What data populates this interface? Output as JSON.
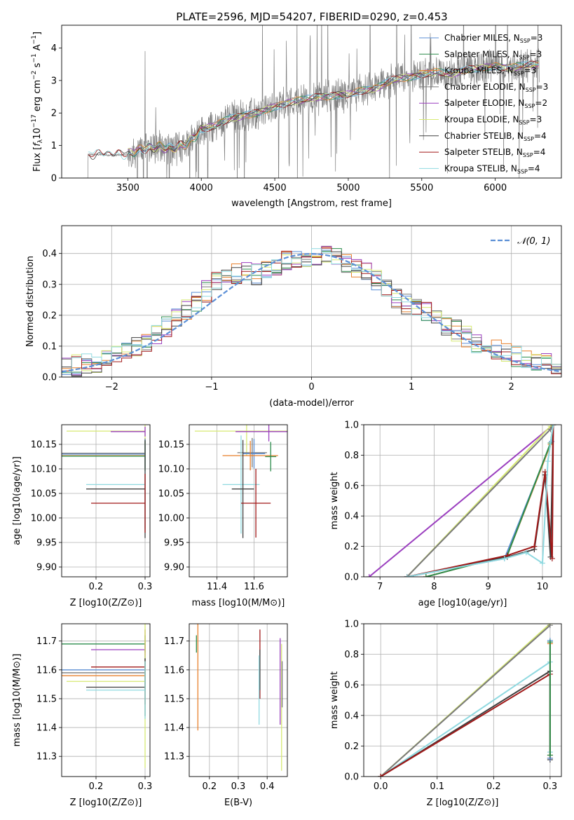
{
  "figure_title": "PLATE=2596, MJD=54207, FIBERID=0290, z=0.453",
  "palette": {
    "Chabrier MILES": "#5b8fd6",
    "Salpeter MILES": "#2c8c4c",
    "Kroupa MILES": "#e8802d",
    "Chabrier ELODIE": "#7a7a7a",
    "Salpeter ELODIE": "#9b3fbf",
    "Kroupa ELODIE": "#d7ea73",
    "Chabrier STELIB": "#404040",
    "Salpeter STELIB": "#a01818",
    "Kroupa STELIB": "#8fd9e0",
    "data": "#808080",
    "normal": "#5b8fd6"
  },
  "chart_data": [
    {
      "type": "line",
      "id": "spectrum",
      "xlabel": "wavelength [Angstrom, rest frame]",
      "ylabel": "Flux [f_λ 10^-17 erg cm^-2 s^-1 A^-1]",
      "xlim": [
        3050,
        6450
      ],
      "ylim": [
        0,
        4.7
      ],
      "xticks": [
        3500,
        4000,
        4500,
        5000,
        5500,
        6000
      ],
      "yticks": [
        0,
        1,
        2,
        3,
        4
      ],
      "legend_position": "upper right",
      "legend": [
        {
          "label": "Chabrier MILES, N",
          "sub": "SSP",
          "suffix": "=3"
        },
        {
          "label": "Salpeter MILES, N",
          "sub": "SSP",
          "suffix": "=3"
        },
        {
          "label": "Kroupa MILES, N",
          "sub": "SSP",
          "suffix": "=3"
        },
        {
          "label": "Chabrier ELODIE, N",
          "sub": "SSP",
          "suffix": "=3"
        },
        {
          "label": "Salpeter ELODIE, N",
          "sub": "SSP",
          "suffix": "=2"
        },
        {
          "label": "Kroupa ELODIE, N",
          "sub": "SSP",
          "suffix": "=3"
        },
        {
          "label": "Chabrier STELIB, N",
          "sub": "SSP",
          "suffix": "=4"
        },
        {
          "label": "Salpeter STELIB, N",
          "sub": "SSP",
          "suffix": "=4"
        },
        {
          "label": "Kroupa STELIB, N",
          "sub": "SSP",
          "suffix": "=4"
        }
      ],
      "model_envelope": {
        "x": [
          3200,
          3230,
          3300,
          3400,
          3500,
          3600,
          3700,
          3800,
          3900,
          4000,
          4100,
          4200,
          4300,
          4400,
          4500,
          4600,
          4700,
          4800,
          4900,
          5000,
          5100,
          5200,
          5300,
          5400,
          5500,
          5600,
          5700,
          5800,
          5900,
          6000,
          6100,
          6200,
          6300
        ],
        "y": [
          0.0,
          0.72,
          0.72,
          0.7,
          0.72,
          0.9,
          0.98,
          0.88,
          1.05,
          1.5,
          1.6,
          1.85,
          1.95,
          2.0,
          2.2,
          2.35,
          2.4,
          2.5,
          2.55,
          2.55,
          2.7,
          2.8,
          3.0,
          3.1,
          3.2,
          3.25,
          3.2,
          3.35,
          3.35,
          3.45,
          3.4,
          3.45,
          3.5
        ]
      }
    },
    {
      "type": "line",
      "id": "residuals",
      "xlabel": "(data-model)/error",
      "ylabel": "Normed distribution",
      "xlim": [
        -2.5,
        2.5
      ],
      "ylim": [
        0,
        0.49
      ],
      "xticks": [
        -2,
        -1,
        0,
        1,
        2
      ],
      "yticks": [
        0.0,
        0.1,
        0.2,
        0.3,
        0.4
      ],
      "grid": true,
      "legend": [
        "𝒩(0, 1)"
      ],
      "legend_position": "upper right",
      "normal_curve": {
        "mean": 0,
        "sigma": 1
      },
      "histogram_envelope": {
        "bins_x": [
          -2.5,
          -2.3,
          -2.1,
          -1.9,
          -1.7,
          -1.5,
          -1.3,
          -1.1,
          -0.9,
          -0.7,
          -0.5,
          -0.3,
          -0.1,
          0.1,
          0.3,
          0.5,
          0.7,
          0.9,
          1.1,
          1.3,
          1.5,
          1.7,
          1.9,
          2.1,
          2.3,
          2.5
        ],
        "y": [
          0.03,
          0.04,
          0.05,
          0.08,
          0.1,
          0.15,
          0.2,
          0.26,
          0.33,
          0.34,
          0.33,
          0.37,
          0.39,
          0.4,
          0.38,
          0.35,
          0.3,
          0.24,
          0.22,
          0.18,
          0.14,
          0.1,
          0.08,
          0.06,
          0.05,
          0.04
        ]
      }
    },
    {
      "type": "scatter",
      "id": "age_vs_Z",
      "xlabel": "Z [log10(Z/Z⊙)]",
      "ylabel": "age [log10(age/yr)]",
      "xlim": [
        0.13,
        0.31
      ],
      "ylim": [
        9.88,
        10.19
      ],
      "xticks": [
        0.2,
        0.3
      ],
      "yticks": [
        9.9,
        9.95,
        10.0,
        10.05,
        10.1,
        10.15
      ],
      "grid": true,
      "points": [
        {
          "model": "Kroupa ELODIE",
          "x": 0.3,
          "y": 10.177,
          "xerr_low": 0.16,
          "yerr": 0.04
        },
        {
          "model": "Salpeter ELODIE",
          "x": 0.3,
          "y": 10.176,
          "xerr_low": 0.07,
          "yerr": 0.01
        },
        {
          "model": "Chabrier ELODIE",
          "x": 0.3,
          "y": 10.132,
          "xerr_low": 0.17,
          "yerr": 0.03
        },
        {
          "model": "Chabrier MILES",
          "x": 0.3,
          "y": 10.13,
          "xerr_low": 0.17,
          "yerr": 0.03
        },
        {
          "model": "Kroupa MILES",
          "x": 0.3,
          "y": 10.127,
          "xerr_low": 0.17,
          "yerr": 0.03
        },
        {
          "model": "Salpeter MILES",
          "x": 0.3,
          "y": 10.126,
          "xerr_low": 0.17,
          "yerr": 0.03
        },
        {
          "model": "Kroupa STELIB",
          "x": 0.3,
          "y": 10.068,
          "xerr_low": 0.12,
          "yerr": 0.09
        },
        {
          "model": "Chabrier STELIB",
          "x": 0.3,
          "y": 10.059,
          "xerr_low": 0.12,
          "yerr": 0.1
        },
        {
          "model": "Salpeter STELIB",
          "x": 0.3,
          "y": 10.03,
          "xerr_low": 0.11,
          "yerr": 0.06
        }
      ]
    },
    {
      "type": "scatter",
      "id": "age_vs_mass",
      "xlabel": "mass [log10(M/M⊙)]",
      "ylabel": "",
      "xlim": [
        11.25,
        11.78
      ],
      "ylim": [
        9.88,
        10.19
      ],
      "xticks": [
        11.4,
        11.6
      ],
      "yticks": [
        9.9,
        9.95,
        10.0,
        10.05,
        10.1,
        10.15
      ],
      "grid": true,
      "points": [
        {
          "model": "Kroupa ELODIE",
          "x": 11.56,
          "y": 10.177,
          "xerr": 0.28,
          "yerr": 0.05
        },
        {
          "model": "Salpeter ELODIE",
          "x": 11.68,
          "y": 10.176,
          "xerr": 0.18,
          "yerr": 0.02
        },
        {
          "model": "Chabrier ELODIE",
          "x": 11.59,
          "y": 10.133,
          "xerr": 0.08,
          "yerr": 0.03
        },
        {
          "model": "Chabrier MILES",
          "x": 11.6,
          "y": 10.131,
          "xerr": 0.06,
          "yerr": 0.03
        },
        {
          "model": "Kroupa MILES",
          "x": 11.58,
          "y": 10.127,
          "xerr": 0.15,
          "yerr": 0.03
        },
        {
          "model": "Salpeter MILES",
          "x": 11.69,
          "y": 10.125,
          "xerr": 0.03,
          "yerr": 0.03
        },
        {
          "model": "Kroupa STELIB",
          "x": 11.53,
          "y": 10.068,
          "xerr": 0.1,
          "yerr": 0.1
        },
        {
          "model": "Chabrier STELIB",
          "x": 11.54,
          "y": 10.059,
          "xerr": 0.06,
          "yerr": 0.1
        },
        {
          "model": "Salpeter STELIB",
          "x": 11.61,
          "y": 10.03,
          "xerr": 0.08,
          "yerr": 0.07
        }
      ]
    },
    {
      "type": "line",
      "id": "massweight_vs_age",
      "xlabel": "age [log10(age/yr)]",
      "ylabel": "mass weight",
      "xlim": [
        6.7,
        10.35
      ],
      "ylim": [
        0,
        1.0
      ],
      "xticks": [
        7,
        8,
        9,
        10
      ],
      "yticks": [
        0.0,
        0.2,
        0.4,
        0.6,
        0.8,
        1.0
      ],
      "grid": true,
      "series": [
        {
          "model": "Salpeter ELODIE",
          "x": [
            6.8,
            10.2
          ],
          "y": [
            0.0,
            1.0
          ]
        },
        {
          "model": "Kroupa ELODIE",
          "x": [
            7.5,
            10.15,
            10.2
          ],
          "y": [
            0.0,
            0.99,
            1.0
          ]
        },
        {
          "model": "Chabrier ELODIE",
          "x": [
            7.5,
            10.15,
            10.2
          ],
          "y": [
            0.0,
            0.97,
            1.0
          ]
        },
        {
          "model": "Chabrier MILES",
          "x": [
            7.5,
            9.3,
            10.17,
            10.2
          ],
          "y": [
            0.0,
            0.12,
            0.89,
            1.0
          ]
        },
        {
          "model": "Kroupa MILES",
          "x": [
            7.85,
            9.35,
            10.15,
            10.2
          ],
          "y": [
            0.0,
            0.14,
            0.87,
            1.0
          ]
        },
        {
          "model": "Salpeter MILES",
          "x": [
            7.85,
            9.35,
            10.15,
            10.2
          ],
          "y": [
            0.0,
            0.14,
            0.88,
            1.0
          ]
        },
        {
          "model": "Chabrier STELIB",
          "x": [
            7.5,
            9.35,
            9.85,
            10.05,
            10.15,
            10.2
          ],
          "y": [
            0.0,
            0.13,
            0.18,
            0.67,
            0.13,
            1.0
          ]
        },
        {
          "model": "Salpeter STELIB",
          "x": [
            7.5,
            9.35,
            9.85,
            10.05,
            10.18,
            10.2
          ],
          "y": [
            0.0,
            0.14,
            0.2,
            0.69,
            0.12,
            1.0
          ]
        },
        {
          "model": "Kroupa STELIB",
          "x": [
            7.5,
            9.3,
            9.7,
            10.0,
            10.1,
            10.2
          ],
          "y": [
            0.0,
            0.12,
            0.16,
            0.09,
            0.76,
            1.0
          ]
        }
      ]
    },
    {
      "type": "scatter",
      "id": "mass_vs_Z",
      "xlabel": "Z [log10(Z/Z⊙)]",
      "ylabel": "mass [log10(M/M⊙)]",
      "xlim": [
        0.13,
        0.31
      ],
      "ylim": [
        11.23,
        11.76
      ],
      "xticks": [
        0.2,
        0.3
      ],
      "yticks": [
        11.3,
        11.4,
        11.5,
        11.6,
        11.7
      ],
      "grid": true,
      "points": [
        {
          "model": "Salpeter MILES",
          "x": 0.3,
          "y": 11.69,
          "xerr_low": 0.17,
          "yerr": 0.03
        },
        {
          "model": "Salpeter ELODIE",
          "x": 0.3,
          "y": 11.67,
          "xerr_low": 0.11,
          "yerr": 0.02
        },
        {
          "model": "Salpeter STELIB",
          "x": 0.3,
          "y": 11.61,
          "xerr_low": 0.11,
          "yerr": 0.13
        },
        {
          "model": "Chabrier MILES",
          "x": 0.3,
          "y": 11.6,
          "xerr_low": 0.17,
          "yerr": 0.05
        },
        {
          "model": "Chabrier ELODIE",
          "x": 0.3,
          "y": 11.59,
          "xerr_low": 0.17,
          "yerr": 0.05
        },
        {
          "model": "Kroupa MILES",
          "x": 0.3,
          "y": 11.58,
          "xerr_low": 0.17,
          "yerr": 0.05
        },
        {
          "model": "Kroupa ELODIE",
          "x": 0.3,
          "y": 11.56,
          "xerr_low": 0.16,
          "yerr": 0.3
        },
        {
          "model": "Chabrier STELIB",
          "x": 0.3,
          "y": 11.54,
          "xerr_low": 0.12,
          "yerr": 0.1
        },
        {
          "model": "Kroupa STELIB",
          "x": 0.3,
          "y": 11.53,
          "xerr_low": 0.12,
          "yerr": 0.1
        }
      ]
    },
    {
      "type": "scatter",
      "id": "mass_vs_EBV",
      "xlabel": "E(B-V)",
      "ylabel": "",
      "xlim": [
        0.13,
        0.47
      ],
      "ylim": [
        11.23,
        11.76
      ],
      "xticks": [
        0.2,
        0.3,
        0.4
      ],
      "yticks": [
        11.3,
        11.4,
        11.5,
        11.6,
        11.7
      ],
      "grid": true,
      "points": [
        {
          "model": "Salpeter MILES",
          "x": 0.155,
          "y": 11.69,
          "yerr": 0.03
        },
        {
          "model": "Kroupa MILES",
          "x": 0.16,
          "y": 11.58,
          "yerr": 0.19
        },
        {
          "model": "Salpeter STELIB",
          "x": 0.375,
          "y": 11.62,
          "yerr": 0.12
        },
        {
          "model": "Chabrier STELIB",
          "x": 0.375,
          "y": 11.6,
          "yerr": 0.07
        },
        {
          "model": "Kroupa STELIB",
          "x": 0.372,
          "y": 11.53,
          "yerr": 0.12
        },
        {
          "model": "Salpeter ELODIE",
          "x": 0.445,
          "y": 11.56,
          "yerr": 0.15
        },
        {
          "model": "Kroupa ELODIE",
          "x": 0.45,
          "y": 11.47,
          "yerr": 0.22
        },
        {
          "model": "Chabrier ELODIE",
          "x": 0.452,
          "y": 11.55,
          "yerr": 0.08
        }
      ]
    },
    {
      "type": "line",
      "id": "massweight_vs_Z",
      "xlabel": "Z [log10(Z/Z⊙)]",
      "ylabel": "mass weight",
      "xlim": [
        -0.03,
        0.32
      ],
      "ylim": [
        0,
        1.0
      ],
      "xticks": [
        0.0,
        0.1,
        0.2,
        0.3
      ],
      "yticks": [
        0.0,
        0.2,
        0.4,
        0.6,
        0.8,
        1.0
      ],
      "grid": true,
      "series": [
        {
          "model": "Kroupa ELODIE",
          "x": [
            0.0,
            0.3
          ],
          "y": [
            0.0,
            1.0
          ]
        },
        {
          "model": "Chabrier ELODIE",
          "x": [
            0.0,
            0.3
          ],
          "y": [
            0.0,
            0.99
          ]
        },
        {
          "model": "Kroupa STELIB",
          "x": [
            0.0,
            0.3,
            0.3
          ],
          "y": [
            0.0,
            0.75,
            0.16
          ]
        },
        {
          "model": "Chabrier STELIB",
          "x": [
            0.0,
            0.3,
            0.3
          ],
          "y": [
            0.0,
            0.69,
            0.11
          ]
        },
        {
          "model": "Salpeter STELIB",
          "x": [
            0.0,
            0.3,
            0.3
          ],
          "y": [
            0.0,
            0.67,
            0.12
          ]
        },
        {
          "model": "Chabrier MILES",
          "x": [
            0.3,
            0.3
          ],
          "y": [
            0.12,
            0.89
          ]
        },
        {
          "model": "Kroupa MILES",
          "x": [
            0.3,
            0.3
          ],
          "y": [
            0.14,
            0.87
          ]
        },
        {
          "model": "Salpeter MILES",
          "x": [
            0.3,
            0.3
          ],
          "y": [
            0.14,
            0.88
          ]
        }
      ]
    }
  ]
}
